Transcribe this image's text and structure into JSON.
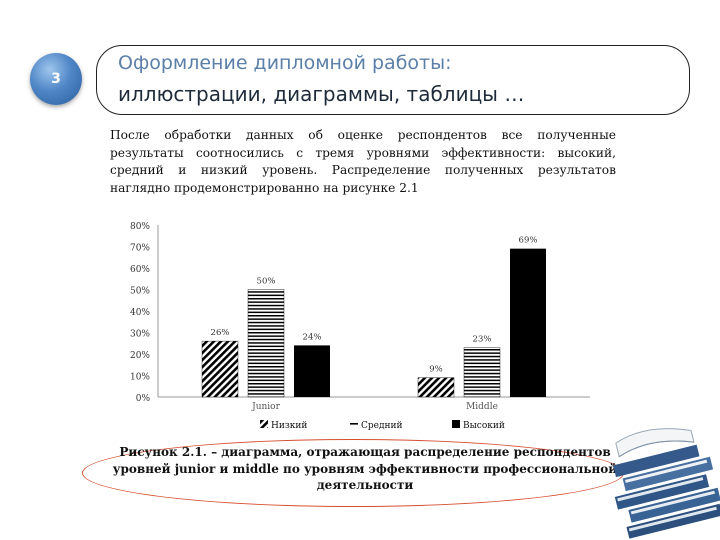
{
  "slide": {
    "number": "3",
    "title_line1": "Оформление дипломной работы:",
    "title_line2": "иллюстрации, диаграммы, таблицы …"
  },
  "document": {
    "paragraph": "После обработки данных об оценке респондентов все полученные результаты соотносились с тремя уровнями эффективности: высокий, средний и низкий уровень. Распределение полученных результатов наглядно продемонстрированно на рисунке 2.1",
    "caption": "Рисунок 2.1. – диаграмма, отражающая распределение респондентов уровней junior и middle по уровням эффективности профессиональной деятельности"
  },
  "chart_data": {
    "type": "bar",
    "categories": [
      "Junior",
      "Middle"
    ],
    "series": [
      {
        "name": "Низкий",
        "values": [
          26,
          9
        ],
        "labels": [
          "26%",
          "9%"
        ],
        "pattern": "diagonal-hatch",
        "color": "#000000"
      },
      {
        "name": "Средний",
        "values": [
          50,
          23
        ],
        "labels": [
          "50%",
          "23%"
        ],
        "pattern": "horizontal-lines",
        "color": "#000000"
      },
      {
        "name": "Высокий",
        "values": [
          24,
          69
        ],
        "labels": [
          "24%",
          "69%"
        ],
        "pattern": "solid",
        "color": "#000000"
      }
    ],
    "y_ticks": [
      "0%",
      "10%",
      "20%",
      "30%",
      "40%",
      "50%",
      "60%",
      "70%",
      "80%"
    ],
    "ylim": [
      0,
      80
    ],
    "grid": false,
    "legend_position": "bottom"
  },
  "colors": {
    "title_line1": "#5b7fa8",
    "title_line2": "#1f2b3a",
    "ellipse": "#d64f2f",
    "slide_number_badge": "#4f86c6"
  }
}
